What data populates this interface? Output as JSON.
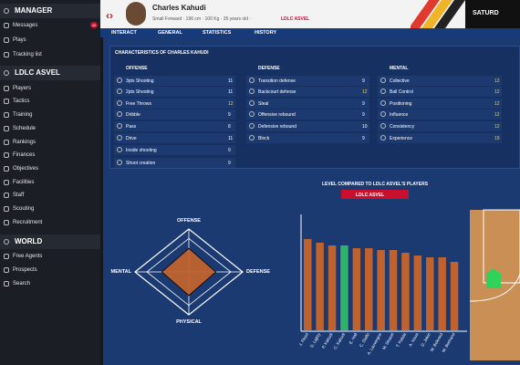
{
  "sidebar": {
    "sections": [
      {
        "title": "MANAGER",
        "items": [
          "Messages",
          "Plays",
          "Tracking list"
        ]
      },
      {
        "title": "LDLC ASVEL",
        "items": [
          "Players",
          "Tactics",
          "Training",
          "Schedule",
          "Rankings",
          "Finances",
          "Objectives",
          "Facilities",
          "Staff",
          "Scouting",
          "Recruitment"
        ]
      },
      {
        "title": "WORLD",
        "items": [
          "Free Agents",
          "Prospects",
          "Search"
        ]
      }
    ],
    "badge": "40"
  },
  "header": {
    "name": "Charles Kahudi",
    "details": "Small Forward · 196 cm · 100 Kg · 35 years old ·",
    "team": "LDLC ASVEL",
    "date": "SATURD",
    "tabs": [
      "INTERACT",
      "GENERAL",
      "STATISTICS",
      "HISTORY"
    ]
  },
  "characteristics": {
    "title": "CHARACTERISTICS OF CHARLES KAHUDI",
    "columns": [
      {
        "title": "OFFENSE",
        "rows": [
          [
            "3pts Shooting",
            "11"
          ],
          [
            "2pts Shooting",
            "11"
          ],
          [
            "Free Throws",
            "12"
          ],
          [
            "Dribble",
            "9"
          ],
          [
            "Pass",
            "8"
          ],
          [
            "Drive",
            "11"
          ],
          [
            "Inside shooting",
            "9"
          ],
          [
            "Shoot creation",
            "9"
          ]
        ]
      },
      {
        "title": "DEFENSE",
        "rows": [
          [
            "Transition defense",
            "9"
          ],
          [
            "Backcourt defense",
            "12"
          ],
          [
            "Steal",
            "9"
          ],
          [
            "Offensive rebound",
            "9"
          ],
          [
            "Defensive rebound",
            "10"
          ],
          [
            "Block",
            "9"
          ]
        ]
      },
      {
        "title": "MENTAL",
        "rows": [
          [
            "Collective",
            "12"
          ],
          [
            "Ball Control",
            "12"
          ],
          [
            "Positioning",
            "12"
          ],
          [
            "Influence",
            "12"
          ],
          [
            "Consistency",
            "12"
          ],
          [
            "Experience",
            "19"
          ]
        ]
      }
    ]
  },
  "radar": {
    "axes": [
      "OFFENSE",
      "DEFENSE",
      "PHYSICAL",
      "MENTAL"
    ],
    "values": [
      55,
      50,
      55,
      50
    ]
  },
  "chart_data": {
    "type": "bar",
    "title": "LEVEL COMPARED TO LDLC ASVEL'S PLAYERS",
    "filter": "LDLC ASVEL",
    "categories": [
      "J. Floyd",
      "D. Lighty",
      "P. Kahudi",
      "C. Kahudi",
      "E. Hall",
      "C. Diallo",
      "A. Lauvergne",
      "M. Strazel",
      "T. Kalala",
      "A. Noua",
      "D. Jekiri",
      "M. Bolivard",
      "M. Bertrand"
    ],
    "values": [
      100,
      96,
      93,
      93,
      90,
      90,
      88,
      88,
      85,
      82,
      80,
      80,
      75
    ],
    "color": "#c0622e",
    "highlight_color": "#2fb36a",
    "highlight": "C. Kahudi"
  }
}
